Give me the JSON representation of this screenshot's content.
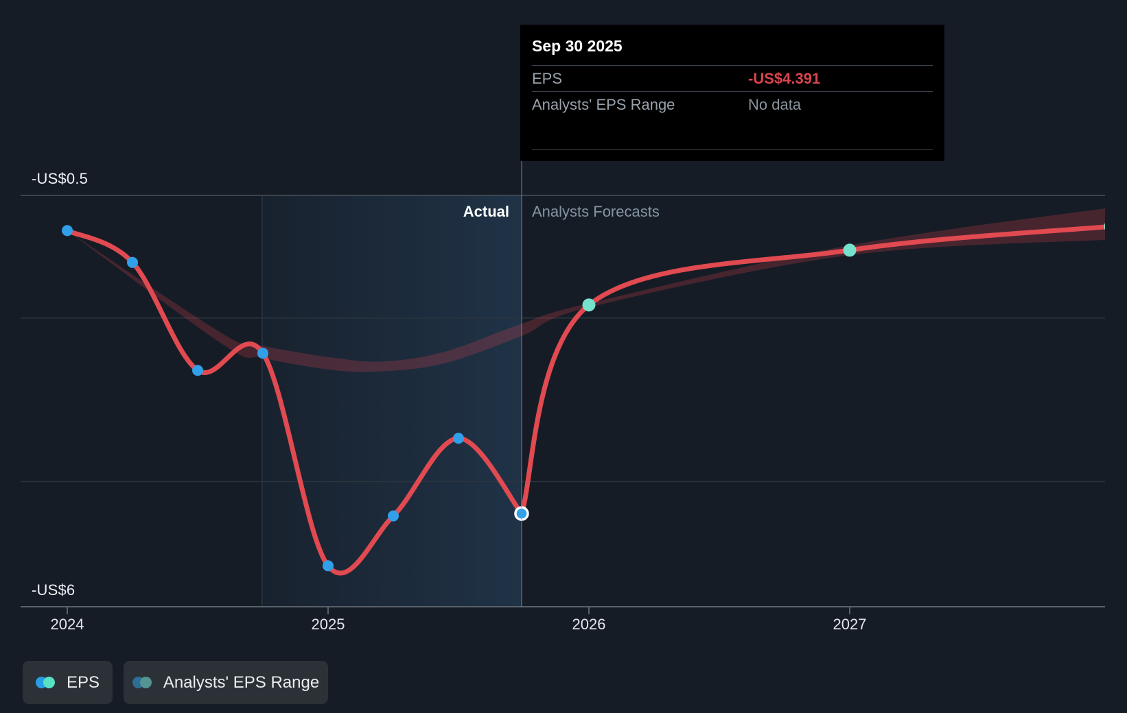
{
  "tooltip": {
    "title": "Sep 30 2025",
    "rows": [
      {
        "label": "EPS",
        "value": "-US$4.391",
        "value_color": "#d9454c"
      },
      {
        "label": "Analysts' EPS Range",
        "value": "No data",
        "value_color": "#8a929c"
      }
    ]
  },
  "phase_labels": {
    "actual": "Actual",
    "forecast": "Analysts Forecasts"
  },
  "y_axis": {
    "top_label": "-US$0.5",
    "bottom_label": "-US$6"
  },
  "x_axis": {
    "ticks": [
      "2024",
      "2025",
      "2026",
      "2027"
    ]
  },
  "legend": [
    {
      "label": "EPS",
      "dot_back": "#269de4",
      "dot_front": "#58e1c2"
    },
    {
      "label": "Analysts' EPS Range",
      "dot_back": "#2d6f94",
      "dot_front": "#549492"
    }
  ],
  "colors": {
    "line_red": "#e04a50",
    "actual_dot_blue": "#32a0e8",
    "forecast_dot_teal": "#74e2cd",
    "range_band": "rgba(226,68,78,0.24)",
    "background": "#161c26"
  },
  "chart_data": {
    "type": "line",
    "title": "EPS — past performance and analysts forecasts",
    "x_unit": "years (t = years after Jan 1 2024)",
    "ylim": [
      -6,
      -0.5
    ],
    "gridline_values": [
      -0.5,
      -2,
      -4
    ],
    "legend_position": "bottom-left",
    "divider_t": 1.742,
    "series": [
      {
        "name": "EPS (actual)",
        "points": [
          {
            "date": "Dec 31 2023",
            "t": 0.0,
            "value": -0.93
          },
          {
            "date": "Mar 31 2024",
            "t": 0.25,
            "value": -1.32
          },
          {
            "date": "Jun 30 2024",
            "t": 0.5,
            "value": -2.64
          },
          {
            "date": "Sep 30 2024",
            "t": 0.75,
            "value": -2.43
          },
          {
            "date": "Dec 31 2024",
            "t": 1.0,
            "value": -5.03
          },
          {
            "date": "Mar 31 2025",
            "t": 1.25,
            "value": -4.42
          },
          {
            "date": "Jun 30 2025",
            "t": 1.5,
            "value": -3.47
          },
          {
            "date": "Sep 30 2025",
            "t": 1.742,
            "value": -4.391
          }
        ]
      },
      {
        "name": "EPS (analysts forecast)",
        "points": [
          {
            "date": "Sep 30 2025",
            "t": 1.742,
            "value": -4.391
          },
          {
            "date": "Dec 31 2025",
            "t": 2.0,
            "value": -1.84
          },
          {
            "date": "Dec 31 2026",
            "t": 3.0,
            "value": -1.17
          },
          {
            "date": "Dec 31 2027",
            "t": 4.0,
            "value": -0.88
          }
        ]
      }
    ],
    "range_band": {
      "name": "Analysts' EPS Range",
      "points": [
        {
          "t": 0.0,
          "top": -0.93,
          "bottom": -0.93
        },
        {
          "t": 0.6,
          "top": -2.2,
          "bottom": -2.33
        },
        {
          "t": 0.75,
          "top": -2.34,
          "bottom": -2.49
        },
        {
          "t": 1.03,
          "top": -2.49,
          "bottom": -2.64
        },
        {
          "t": 1.22,
          "top": -2.53,
          "bottom": -2.65
        },
        {
          "t": 1.45,
          "top": -2.41,
          "bottom": -2.55
        },
        {
          "t": 1.742,
          "top": -2.07,
          "bottom": -2.22
        },
        {
          "t": 2.0,
          "top": -1.82,
          "bottom": -1.87
        },
        {
          "t": 3.0,
          "top": -1.11,
          "bottom": -1.23
        },
        {
          "t": 4.0,
          "top": -0.65,
          "bottom": -1.04
        }
      ]
    }
  }
}
